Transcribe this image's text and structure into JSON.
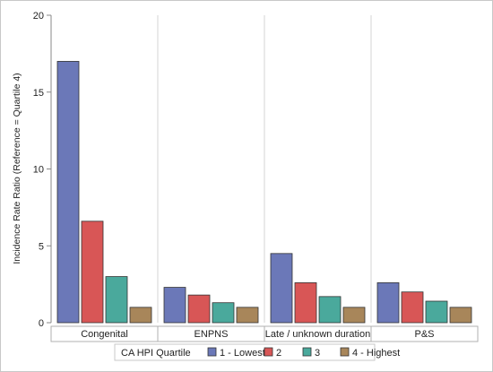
{
  "chart_data": {
    "type": "bar",
    "ylabel": "Incidence Rate Ratio (Reference = Quartile 4)",
    "xlabel": "",
    "ylim": [
      0,
      20
    ],
    "yticks": [
      0,
      5,
      10,
      15,
      20
    ],
    "grid": false,
    "legend_position": "bottom",
    "legend_title": "CA HPI Quartile",
    "categories": [
      "Congenital",
      "ENPNS",
      "Late / unknown duration",
      "P&S"
    ],
    "series": [
      {
        "name": "1 - Lowest",
        "color": "#6b78b8",
        "values": [
          17.0,
          2.3,
          4.5,
          2.6
        ]
      },
      {
        "name": "2",
        "color": "#d85656",
        "values": [
          6.6,
          1.8,
          2.6,
          2.0
        ]
      },
      {
        "name": "3",
        "color": "#4aa99c",
        "values": [
          3.0,
          1.3,
          1.7,
          1.4
        ]
      },
      {
        "name": "4 - Highest",
        "color": "#a8865a",
        "values": [
          1.0,
          1.0,
          1.0,
          1.0
        ]
      }
    ]
  }
}
